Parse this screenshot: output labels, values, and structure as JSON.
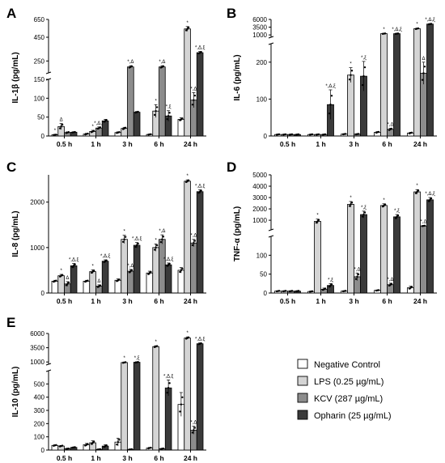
{
  "colors": {
    "Negative Control": "#ffffff",
    "LPS (0.25 µg/mL)": "#d4d4d4",
    "KCV (287 µg/mL)": "#8c8c8c",
    "Opharin (25 µg/mL)": "#3a3a3a",
    "stroke": "#000000",
    "dot": "#000000"
  },
  "legend": {
    "position": "bottom-right",
    "items": [
      "Negative Control",
      "LPS (0.25 µg/mL)",
      "KCV (287 µg/mL)",
      "Opharin (25 µg/mL)"
    ]
  },
  "chart_data": [
    {
      "panel": "A",
      "type": "bar",
      "ylabel": "IL-1β (pg/mL)",
      "categories": [
        "0.5 h",
        "1 h",
        "3 h",
        "6 h",
        "24 h"
      ],
      "axis": {
        "lower": [
          0,
          150
        ],
        "upper": [
          150,
          600
        ],
        "lower_ticks": [
          0,
          50,
          100
        ],
        "upper_ticks": [
          150,
          250,
          450,
          650
        ],
        "upper_tick_labels": [
          "150",
          "250",
          "450",
          "650"
        ]
      },
      "series": [
        {
          "name": "Negative Control",
          "values": [
            3,
            5,
            9,
            4,
            44
          ],
          "errors": [
            1,
            2,
            2,
            1,
            4
          ]
        },
        {
          "name": "LPS (0.25 µg/mL)",
          "values": [
            25,
            12,
            20,
            66,
            520
          ],
          "errors": [
            8,
            3,
            3,
            17,
            20
          ]
        },
        {
          "name": "KCV (287 µg/mL)",
          "values": [
            9,
            21,
            200,
            200,
            95
          ],
          "errors": [
            2,
            3,
            10,
            10,
            20
          ]
        },
        {
          "name": "Opharin (25 µg/mL)",
          "values": [
            10,
            40,
            63,
            53,
            320
          ],
          "errors": [
            1,
            4,
            2,
            14,
            10
          ]
        }
      ],
      "annotations": [
        [
          "*",
          "Δ",
          "",
          ""
        ],
        [
          "",
          "*",
          "*,Δ,ξ",
          ""
        ],
        [
          "",
          "",
          "*,Δ",
          ""
        ],
        [
          "",
          "*",
          "*,Δ",
          "*,ξ"
        ],
        [
          "",
          "*",
          "*,Δ",
          "*,Δ,ξ"
        ]
      ]
    },
    {
      "panel": "B",
      "type": "bar",
      "ylabel": "IL-6 (pg/mL)",
      "categories": [
        "0.5 h",
        "1 h",
        "3 h",
        "6 h",
        "24 h"
      ],
      "axis": {
        "lower": [
          0,
          250
        ],
        "upper": [
          250,
          6000
        ],
        "lower_ticks": [
          0,
          100,
          200
        ],
        "upper_ticks": [
          1000,
          3500,
          6000
        ],
        "upper_tick_labels": [
          "1000",
          "3500",
          "6000"
        ]
      },
      "series": [
        {
          "name": "Negative Control",
          "values": [
            4,
            4,
            5,
            10,
            8
          ],
          "errors": [
            1,
            1,
            1,
            2,
            2
          ]
        },
        {
          "name": "LPS (0.25 µg/mL)",
          "values": [
            4,
            4,
            165,
            1400,
            3000
          ],
          "errors": [
            1,
            1,
            20,
            100,
            200
          ]
        },
        {
          "name": "KCV (287 µg/mL)",
          "values": [
            4,
            4,
            5,
            18,
            170
          ],
          "errors": [
            1,
            1,
            1,
            3,
            30
          ]
        },
        {
          "name": "Opharin (25 µg/mL)",
          "values": [
            4,
            85,
            162,
            1400,
            4500
          ],
          "errors": [
            1,
            40,
            40,
            100,
            150
          ]
        }
      ],
      "annotations": [
        [
          "",
          "",
          "",
          ""
        ],
        [
          "",
          "",
          "",
          "*,Δ,ξ"
        ],
        [
          "",
          "*",
          "",
          "*,ξ"
        ],
        [
          "",
          "*",
          "*,Δ",
          "*,Δ,ξ"
        ],
        [
          "",
          "*",
          "Δ",
          "*,Δ,ξ"
        ]
      ]
    },
    {
      "panel": "C",
      "type": "bar",
      "ylabel": "IL-8 (pg/mL)",
      "categories": [
        "0.5 h",
        "1 h",
        "3 h",
        "6 h",
        "24 h"
      ],
      "axis": {
        "range": [
          0,
          2600
        ],
        "ticks": [
          0,
          1000,
          2000
        ]
      },
      "series": [
        {
          "name": "Negative Control",
          "values": [
            260,
            260,
            280,
            440,
            500
          ],
          "errors": [
            20,
            20,
            30,
            40,
            60
          ]
        },
        {
          "name": "LPS (0.25 µg/mL)",
          "values": [
            380,
            470,
            1180,
            1000,
            2460
          ],
          "errors": [
            30,
            40,
            90,
            80,
            30
          ]
        },
        {
          "name": "KCV (287 µg/mL)",
          "values": [
            200,
            150,
            480,
            1180,
            1100
          ],
          "errors": [
            50,
            30,
            40,
            100,
            80
          ]
        },
        {
          "name": "Opharin (25 µg/mL)",
          "values": [
            600,
            700,
            1050,
            620,
            2230
          ],
          "errors": [
            50,
            30,
            60,
            40,
            40
          ]
        }
      ],
      "annotations": [
        [
          "",
          "*",
          "Δ",
          "*,Δ,ξ"
        ],
        [
          "",
          "*",
          "Δ",
          "*,Δ,ξ"
        ],
        [
          "",
          "*",
          "*,Δ",
          "*,Δ,ξ"
        ],
        [
          "",
          "*",
          "*,Δ",
          "*,Δ,ξ"
        ],
        [
          "",
          "*",
          "*,Δ",
          "*,Δ,ξ"
        ]
      ]
    },
    {
      "panel": "D",
      "type": "bar",
      "ylabel": "TNF-α (pg/mL)",
      "categories": [
        "0.5 h",
        "1 h",
        "3 h",
        "6 h",
        "24 h"
      ],
      "axis": {
        "lower": [
          0,
          150
        ],
        "upper": [
          150,
          5000
        ],
        "lower_ticks": [
          0,
          50,
          100
        ],
        "upper_ticks": [
          1000,
          2000,
          3000,
          4000,
          5000
        ],
        "upper_tick_labels": [
          "1000",
          "2000",
          "3000",
          "4000",
          "5000"
        ]
      },
      "series": [
        {
          "name": "Negative Control",
          "values": [
            5,
            4,
            5,
            7,
            14
          ],
          "errors": [
            1,
            1,
            1,
            1,
            4
          ]
        },
        {
          "name": "LPS (0.25 µg/mL)",
          "values": [
            5,
            900,
            2400,
            2300,
            3500
          ],
          "errors": [
            1,
            200,
            250,
            150,
            200
          ]
        },
        {
          "name": "KCV (287 µg/mL)",
          "values": [
            5,
            10,
            43,
            22,
            500
          ],
          "errors": [
            1,
            3,
            10,
            4,
            30
          ]
        },
        {
          "name": "Opharin (25 µg/mL)",
          "values": [
            5,
            20,
            1500,
            1300,
            2800
          ],
          "errors": [
            1,
            5,
            300,
            200,
            200
          ]
        }
      ],
      "annotations": [
        [
          "",
          "",
          "",
          ""
        ],
        [
          "",
          "*",
          "",
          "*,ξ"
        ],
        [
          "",
          "*",
          "*,Δ",
          "*,ξ"
        ],
        [
          "",
          "*",
          "*,Δ",
          "*,ξ"
        ],
        [
          "",
          "*",
          "*,Δ",
          "*,Δ,ξ"
        ]
      ]
    },
    {
      "panel": "E",
      "type": "bar",
      "ylabel": "IL-10 (pg/mL)",
      "categories": [
        "0.5 h",
        "1 h",
        "3 h",
        "6 h",
        "24 h"
      ],
      "axis": {
        "lower": [
          0,
          600
        ],
        "upper": [
          600,
          6000
        ],
        "lower_ticks": [
          0,
          100,
          200,
          300,
          400,
          500
        ],
        "upper_ticks": [
          1000,
          3500,
          6000
        ],
        "upper_tick_labels": [
          "1000",
          "3500",
          "6000"
        ]
      },
      "series": [
        {
          "name": "Negative Control",
          "values": [
            35,
            40,
            60,
            15,
            345
          ],
          "errors": [
            5,
            10,
            30,
            5,
            90
          ]
        },
        {
          "name": "LPS (0.25 µg/mL)",
          "values": [
            30,
            55,
            900,
            3700,
            5200
          ],
          "errors": [
            5,
            15,
            100,
            150,
            200
          ]
        },
        {
          "name": "KCV (287 µg/mL)",
          "values": [
            10,
            5,
            5,
            10,
            150
          ],
          "errors": [
            2,
            2,
            2,
            3,
            30
          ]
        },
        {
          "name": "Opharin (25 µg/mL)",
          "values": [
            20,
            30,
            950,
            470,
            4200
          ],
          "errors": [
            3,
            10,
            80,
            60,
            150
          ]
        }
      ],
      "annotations": [
        [
          "",
          "",
          "",
          ""
        ],
        [
          "",
          "",
          "",
          ""
        ],
        [
          "",
          "*",
          "",
          "*,ξ"
        ],
        [
          "",
          "*",
          "",
          "*,Δ,ξ"
        ],
        [
          "",
          "*",
          "*,Δ",
          "*,Δ,ξ"
        ]
      ]
    }
  ]
}
